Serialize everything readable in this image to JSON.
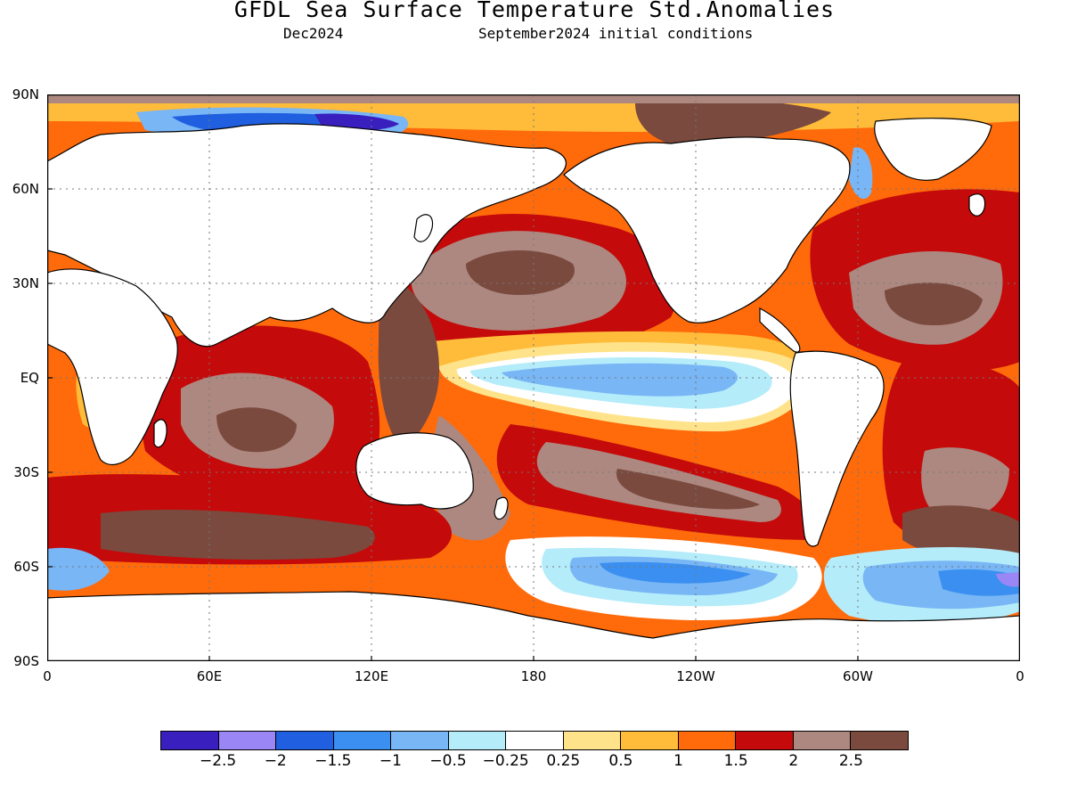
{
  "title": "GFDL Sea Surface Temperature Std.Anomalies",
  "subtitle_left": "Dec2024",
  "subtitle_right": "September2024 initial conditions",
  "map": {
    "lat_labels": [
      "90N",
      "60N",
      "30N",
      "EQ",
      "30S",
      "60S",
      "90S"
    ],
    "lon_labels": [
      "0",
      "60E",
      "120E",
      "180",
      "120W",
      "60W",
      "0"
    ]
  },
  "colorbar": {
    "colors": [
      "#3a1fbf",
      "#9a86f5",
      "#1f5fe0",
      "#3a8ff0",
      "#78b6f5",
      "#b4ecfa",
      "#ffffff",
      "#ffe38a",
      "#ffbb3a",
      "#ff6a0a",
      "#c40a0a",
      "#ad8880",
      "#7a4a3e"
    ],
    "labels": [
      "−2.5",
      "−2",
      "−1.5",
      "−1",
      "−0.5",
      "−0.25",
      "0.25",
      "0.5",
      "1",
      "1.5",
      "2",
      "2.5"
    ]
  }
}
